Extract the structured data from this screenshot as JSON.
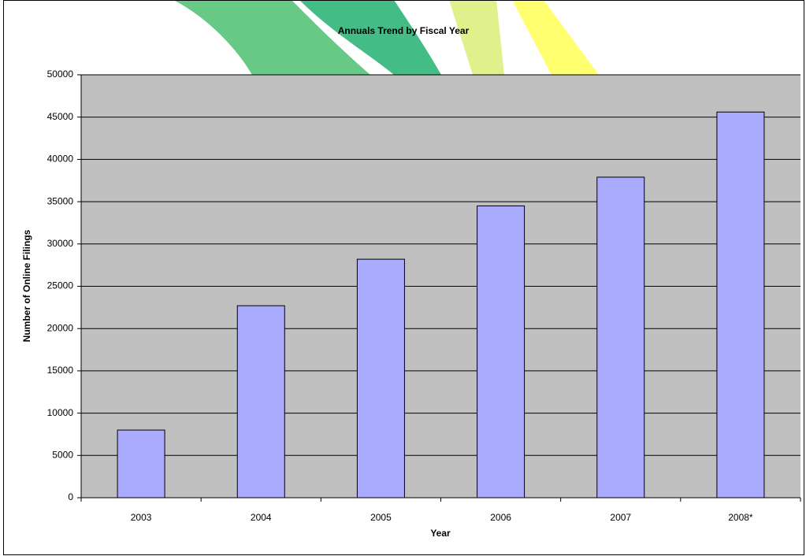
{
  "chart_data": {
    "type": "bar",
    "title": "Annuals Trend by Fiscal Year",
    "x_label": "Year",
    "y_label": "Number of Online Filings",
    "categories": [
      "2003",
      "2004",
      "2005",
      "2006",
      "2007",
      "2008*"
    ],
    "values": [
      8000,
      22700,
      28200,
      34500,
      37900,
      45600
    ],
    "color": "#aaaaff",
    "ylim": [
      0,
      50000
    ],
    "yticks": [
      0,
      5000,
      10000,
      15000,
      20000,
      25000,
      30000,
      35000,
      40000,
      45000,
      50000
    ],
    "grid": true
  }
}
